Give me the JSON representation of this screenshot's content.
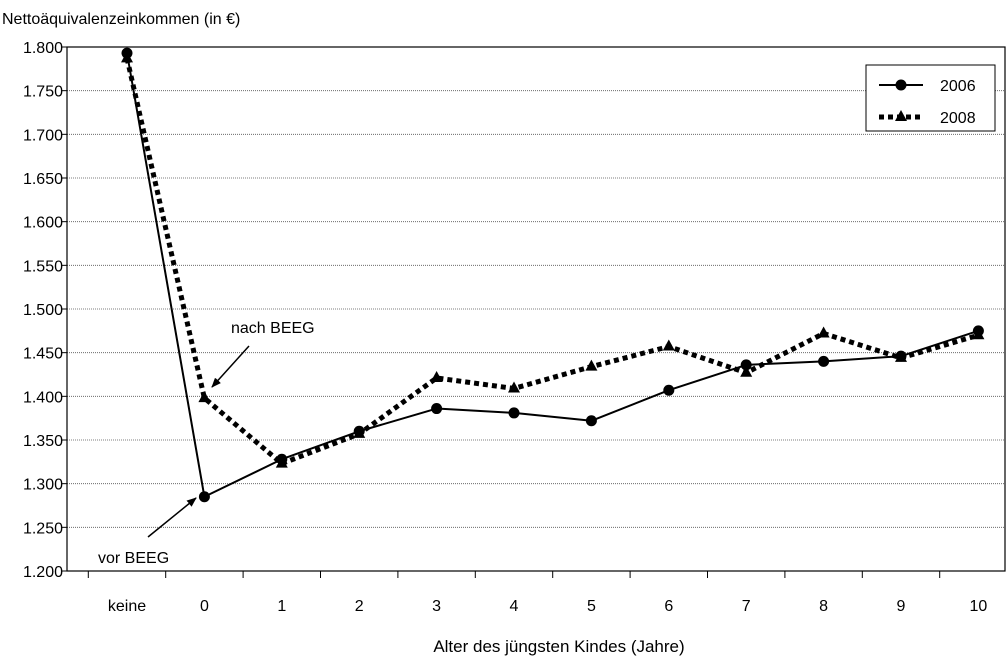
{
  "chart_data": {
    "type": "line",
    "title": "Nettoäquivalenzeinkommen (in €)",
    "xlabel": "Alter des jüngsten Kindes (Jahre)",
    "ylabel": "",
    "categories": [
      "keine",
      "0",
      "1",
      "2",
      "3",
      "4",
      "5",
      "6",
      "7",
      "8",
      "9",
      "10"
    ],
    "ylim": [
      1200,
      1800
    ],
    "yticks": [
      1200,
      1250,
      1300,
      1350,
      1400,
      1450,
      1500,
      1550,
      1600,
      1650,
      1700,
      1750,
      1800
    ],
    "ytick_labels": [
      "1.200",
      "1.250",
      "1.300",
      "1.350",
      "1.400",
      "1.450",
      "1.500",
      "1.550",
      "1.600",
      "1.650",
      "1.700",
      "1.750",
      "1.800"
    ],
    "grid": "horizontal",
    "legend_position": "top-right",
    "series": [
      {
        "name": "2006",
        "style": "solid",
        "marker": "circle",
        "color": "#000000",
        "values": [
          1793,
          1285,
          1328,
          1360,
          1386,
          1381,
          1372,
          1407,
          1436,
          1440,
          1446,
          1475
        ]
      },
      {
        "name": "2008",
        "style": "dotted",
        "marker": "triangle",
        "color": "#000000",
        "values": [
          1787,
          1398,
          1323,
          1357,
          1421,
          1409,
          1434,
          1457,
          1427,
          1472,
          1444,
          1470
        ]
      }
    ],
    "annotations": [
      {
        "text": "nach BEEG",
        "category": "0",
        "series": "2008"
      },
      {
        "text": "vor BEEG",
        "category": "0",
        "series": "2006"
      }
    ]
  }
}
